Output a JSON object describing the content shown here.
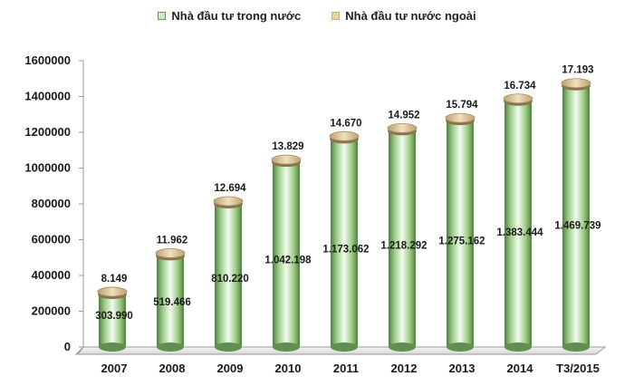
{
  "colors": {
    "domestic": "#7fb069",
    "domestic_dark": "#4a7f3d",
    "foreign_cap": "#d9c49a",
    "axis": "#777777"
  },
  "legend": [
    {
      "name": "Nhà đầu tư trong nước",
      "color": "#7fb069"
    },
    {
      "name": "Nhà đầu tư nước ngoài",
      "color": "#d9c49a"
    }
  ],
  "chart_data": {
    "type": "bar",
    "categories": [
      "2007",
      "2008",
      "2009",
      "2010",
      "2011",
      "2012",
      "2013",
      "2014",
      "T3/2015"
    ],
    "series": [
      {
        "name": "Nhà đầu tư trong nước",
        "values": [
          303990,
          519466,
          810220,
          1042198,
          1173062,
          1218292,
          1275162,
          1383444,
          1469739
        ],
        "labels": [
          "303.990",
          "519.466",
          "810.220",
          "1.042.198",
          "1.173.062",
          "1.218.292",
          "1.275.162",
          "1.383.444",
          "1.469.739"
        ]
      },
      {
        "name": "Nhà đầu tư nước ngoài",
        "values": [
          8149,
          11962,
          12694,
          13829,
          14670,
          14952,
          15794,
          16734,
          17193
        ],
        "labels": [
          "8.149",
          "11.962",
          "12.694",
          "13.829",
          "14.670",
          "14.952",
          "15.794",
          "16.734",
          "17.193"
        ]
      }
    ],
    "yticks": [
      "0",
      "200000",
      "400000",
      "600000",
      "800000",
      "1000000",
      "1200000",
      "1400000",
      "1600000"
    ],
    "ylim": [
      0,
      1600000
    ],
    "grid": false,
    "legend_position": "top"
  }
}
